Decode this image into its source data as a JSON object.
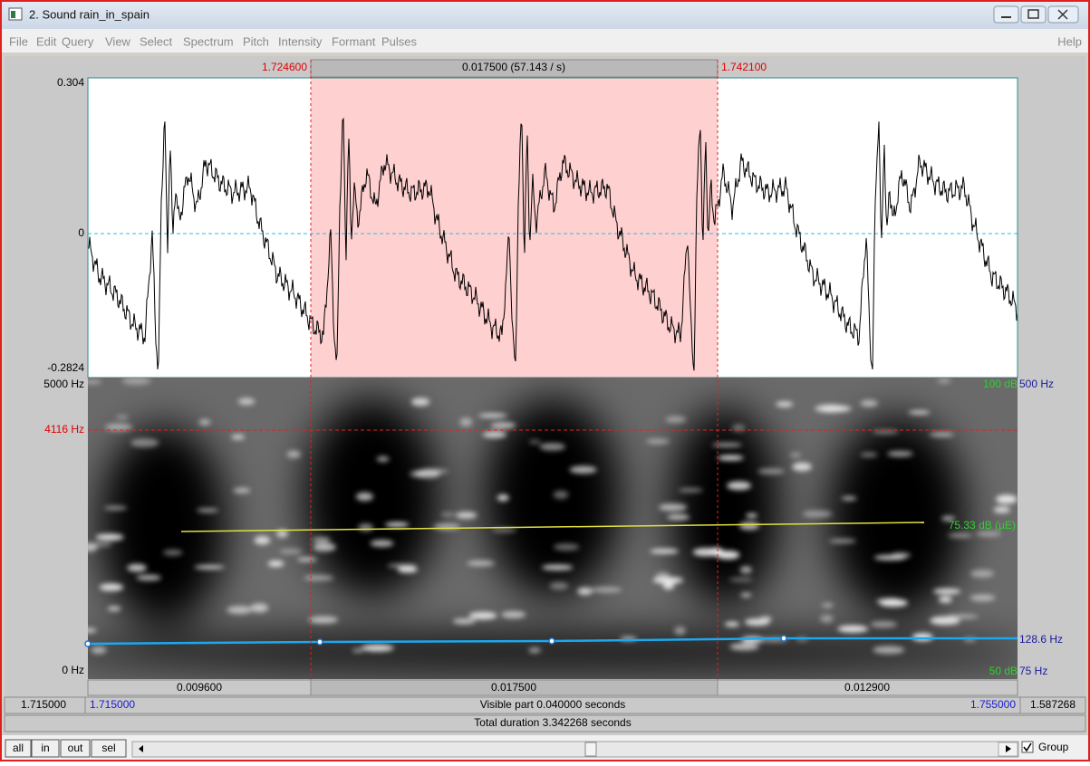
{
  "window": {
    "title": "2. Sound rain_in_spain",
    "menu": [
      "File",
      "Edit",
      "Query",
      "View",
      "Select",
      "Spectrum",
      "Pitch",
      "Intensity",
      "Formant",
      "Pulses"
    ],
    "help": "Help"
  },
  "selection": {
    "start": "1.724600",
    "duration": "0.017500 (57.143 / s)",
    "end": "1.742100"
  },
  "waveform": {
    "max": "0.304",
    "zero": "0",
    "min": "-0.2824"
  },
  "spectrogram": {
    "top": "5000 Hz",
    "cursor": "4116 Hz",
    "bottom": "0 Hz",
    "intensity_max": "100 dB",
    "pitch_max": "500 Hz",
    "intensity": "75.33 dB (µE)",
    "pitch": "128.6 Hz",
    "intensity_min": "50 dB",
    "pitch_min": "75 Hz"
  },
  "segments": [
    "0.009600",
    "0.017500",
    "0.012900"
  ],
  "visible": {
    "before": "1.715000",
    "start": "1.715000",
    "label": "Visible part 0.040000 seconds",
    "end": "1.755000",
    "after": "1.587268"
  },
  "total": "Total duration 3.342268 seconds",
  "buttons": [
    "all",
    "in",
    "out",
    "sel"
  ],
  "group": "Group"
}
